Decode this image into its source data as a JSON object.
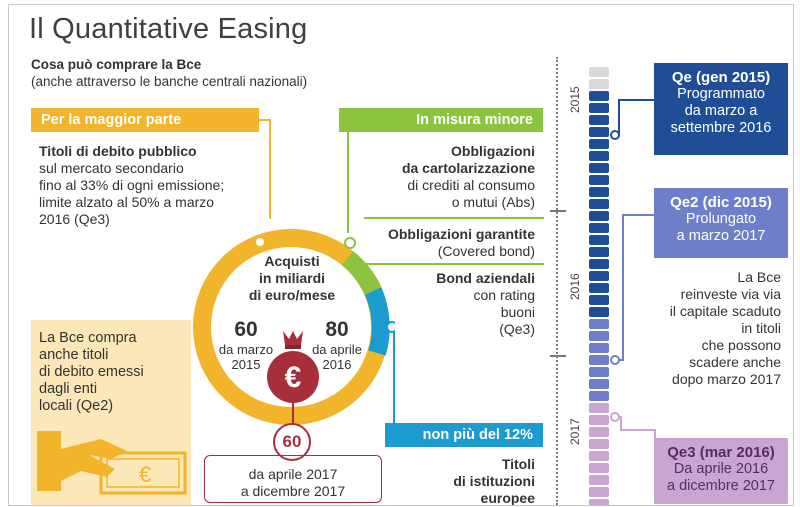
{
  "title": "Il Quantitative Easing",
  "subtitle": {
    "bold": "Cosa può comprare la Bce",
    "normal": "(anche attraverso le banche centrali nazionali)"
  },
  "left": {
    "header": "Per la maggior parte",
    "bold": "Titoli di debito pubblico",
    "lines": [
      "sul mercato secondario",
      "fino al 33% di ogni emissione;",
      "limite alzato al 50% a marzo",
      "2016 (Qe3)"
    ],
    "bce_lines": [
      "La Bce compra",
      "anche titoli",
      "di debito emessi",
      "dagli enti",
      "locali (Qe2)"
    ]
  },
  "center": {
    "label_lines": [
      "Acquisti",
      "in miliardi",
      "di euro/mese"
    ],
    "v1": "60",
    "v1_lines": [
      "da marzo",
      "2015"
    ],
    "v2": "80",
    "v2_lines": [
      "da aprile",
      "2016"
    ],
    "v3": "60",
    "v3_lines": [
      "da aprile 2017",
      "a dicembre 2017"
    ],
    "euro": "€"
  },
  "right": {
    "header_minor": "In misura minore",
    "abs_bold": [
      "Obbligazioni",
      "da cartolarizzazione"
    ],
    "abs_lines": [
      "di crediti al consumo",
      "o mutui (Abs)"
    ],
    "cov_bold": "Obbligazioni garantite",
    "cov_line": "(Covered bond)",
    "bond_bold": "Bond aziendali",
    "bond_lines": [
      "con rating",
      "buoni",
      "(Qe3)"
    ],
    "header_12": "non più del 12%",
    "ist_bold": [
      "Titoli",
      "di istituzioni",
      "europee"
    ]
  },
  "timeline": {
    "years": [
      "2015",
      "2016",
      "2017"
    ],
    "qe": {
      "title": "Qe (gen 2015)",
      "lines": [
        "Programmato",
        "da marzo a",
        "settembre 2016"
      ]
    },
    "qe2": {
      "title": "Qe2 (dic 2015)",
      "lines": [
        "Prolungato",
        "a marzo 2017"
      ]
    },
    "bce_lines": [
      "La Bce",
      "reinveste via via",
      "il capitale scaduto",
      "in titoli",
      "che possono",
      "scadere anche",
      "dopo marzo 2017"
    ],
    "qe3": {
      "title": "Qe3 (mar 2016)",
      "lines": [
        "Da aprile 2016",
        "a dicembre 2017"
      ]
    }
  },
  "colors": {
    "yellow": "#f2b42a",
    "green": "#8cc43f",
    "blue": "#1b9bd0",
    "dark_blue": "#1f4e96",
    "mid_blue": "#6f7ec9",
    "lilac": "#c9a6d2",
    "red": "#a72f3c",
    "cream": "#fbe7b8"
  }
}
